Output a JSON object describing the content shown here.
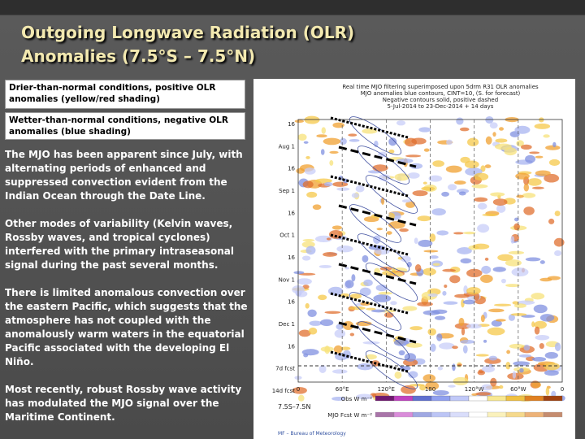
{
  "title_lines": [
    "Outgoing Longwave Radiation (OLR)",
    "Anomalies (7.5°S – 7.5°N)"
  ],
  "legend_boxes": [
    "Drier-than-normal conditions, positive OLR anomalies (yellow/red shading)",
    "Wetter-than-normal conditions, negative OLR anomalies (blue shading)"
  ],
  "paragraphs": [
    "The MJO has been apparent since July, with alternating periods of enhanced and suppressed convection evident from the Indian Ocean through the Date Line.",
    "Other modes of variability (Kelvin waves, Rossby waves, and tropical cyclones) interfered with the primary intraseasonal signal during the past several months.",
    "There is limited anomalous convection over the eastern Pacific, which suggests that the atmosphere has not coupled with the anomalously warm waters in the equatorial Pacific associated with the developing El Niño.",
    "Most recently, robust Rossby wave activity has modulated the MJO signal over the Maritime Continent."
  ],
  "figure": {
    "header_lines": [
      "Real time MJO filtering superimposed upon 5drm R31 OLR anomalies",
      "MJO anomalies blue contours, CINT=10, (S. for forecast)",
      "Negative contours solid, positive dashed",
      "5-Jul-2014 to 23-Dec-2014 + 14 days"
    ],
    "y_labels": [
      "16",
      "Aug 1",
      "16",
      "Sep 1",
      "16",
      "Oct 1",
      "16",
      "Nov 1",
      "16",
      "Dec 1",
      "16",
      "7d fcst",
      "14d fcst"
    ],
    "x_labels": [
      "0",
      "60°E",
      "120°E",
      "180",
      "120°W",
      "60°W",
      "0"
    ],
    "region": "7.5S–7.5N",
    "obs_label": "Obs W m⁻²",
    "fcst_label": "MJO Fcst W m⁻²",
    "credit": "MF – Bureau of Meteorology"
  }
}
